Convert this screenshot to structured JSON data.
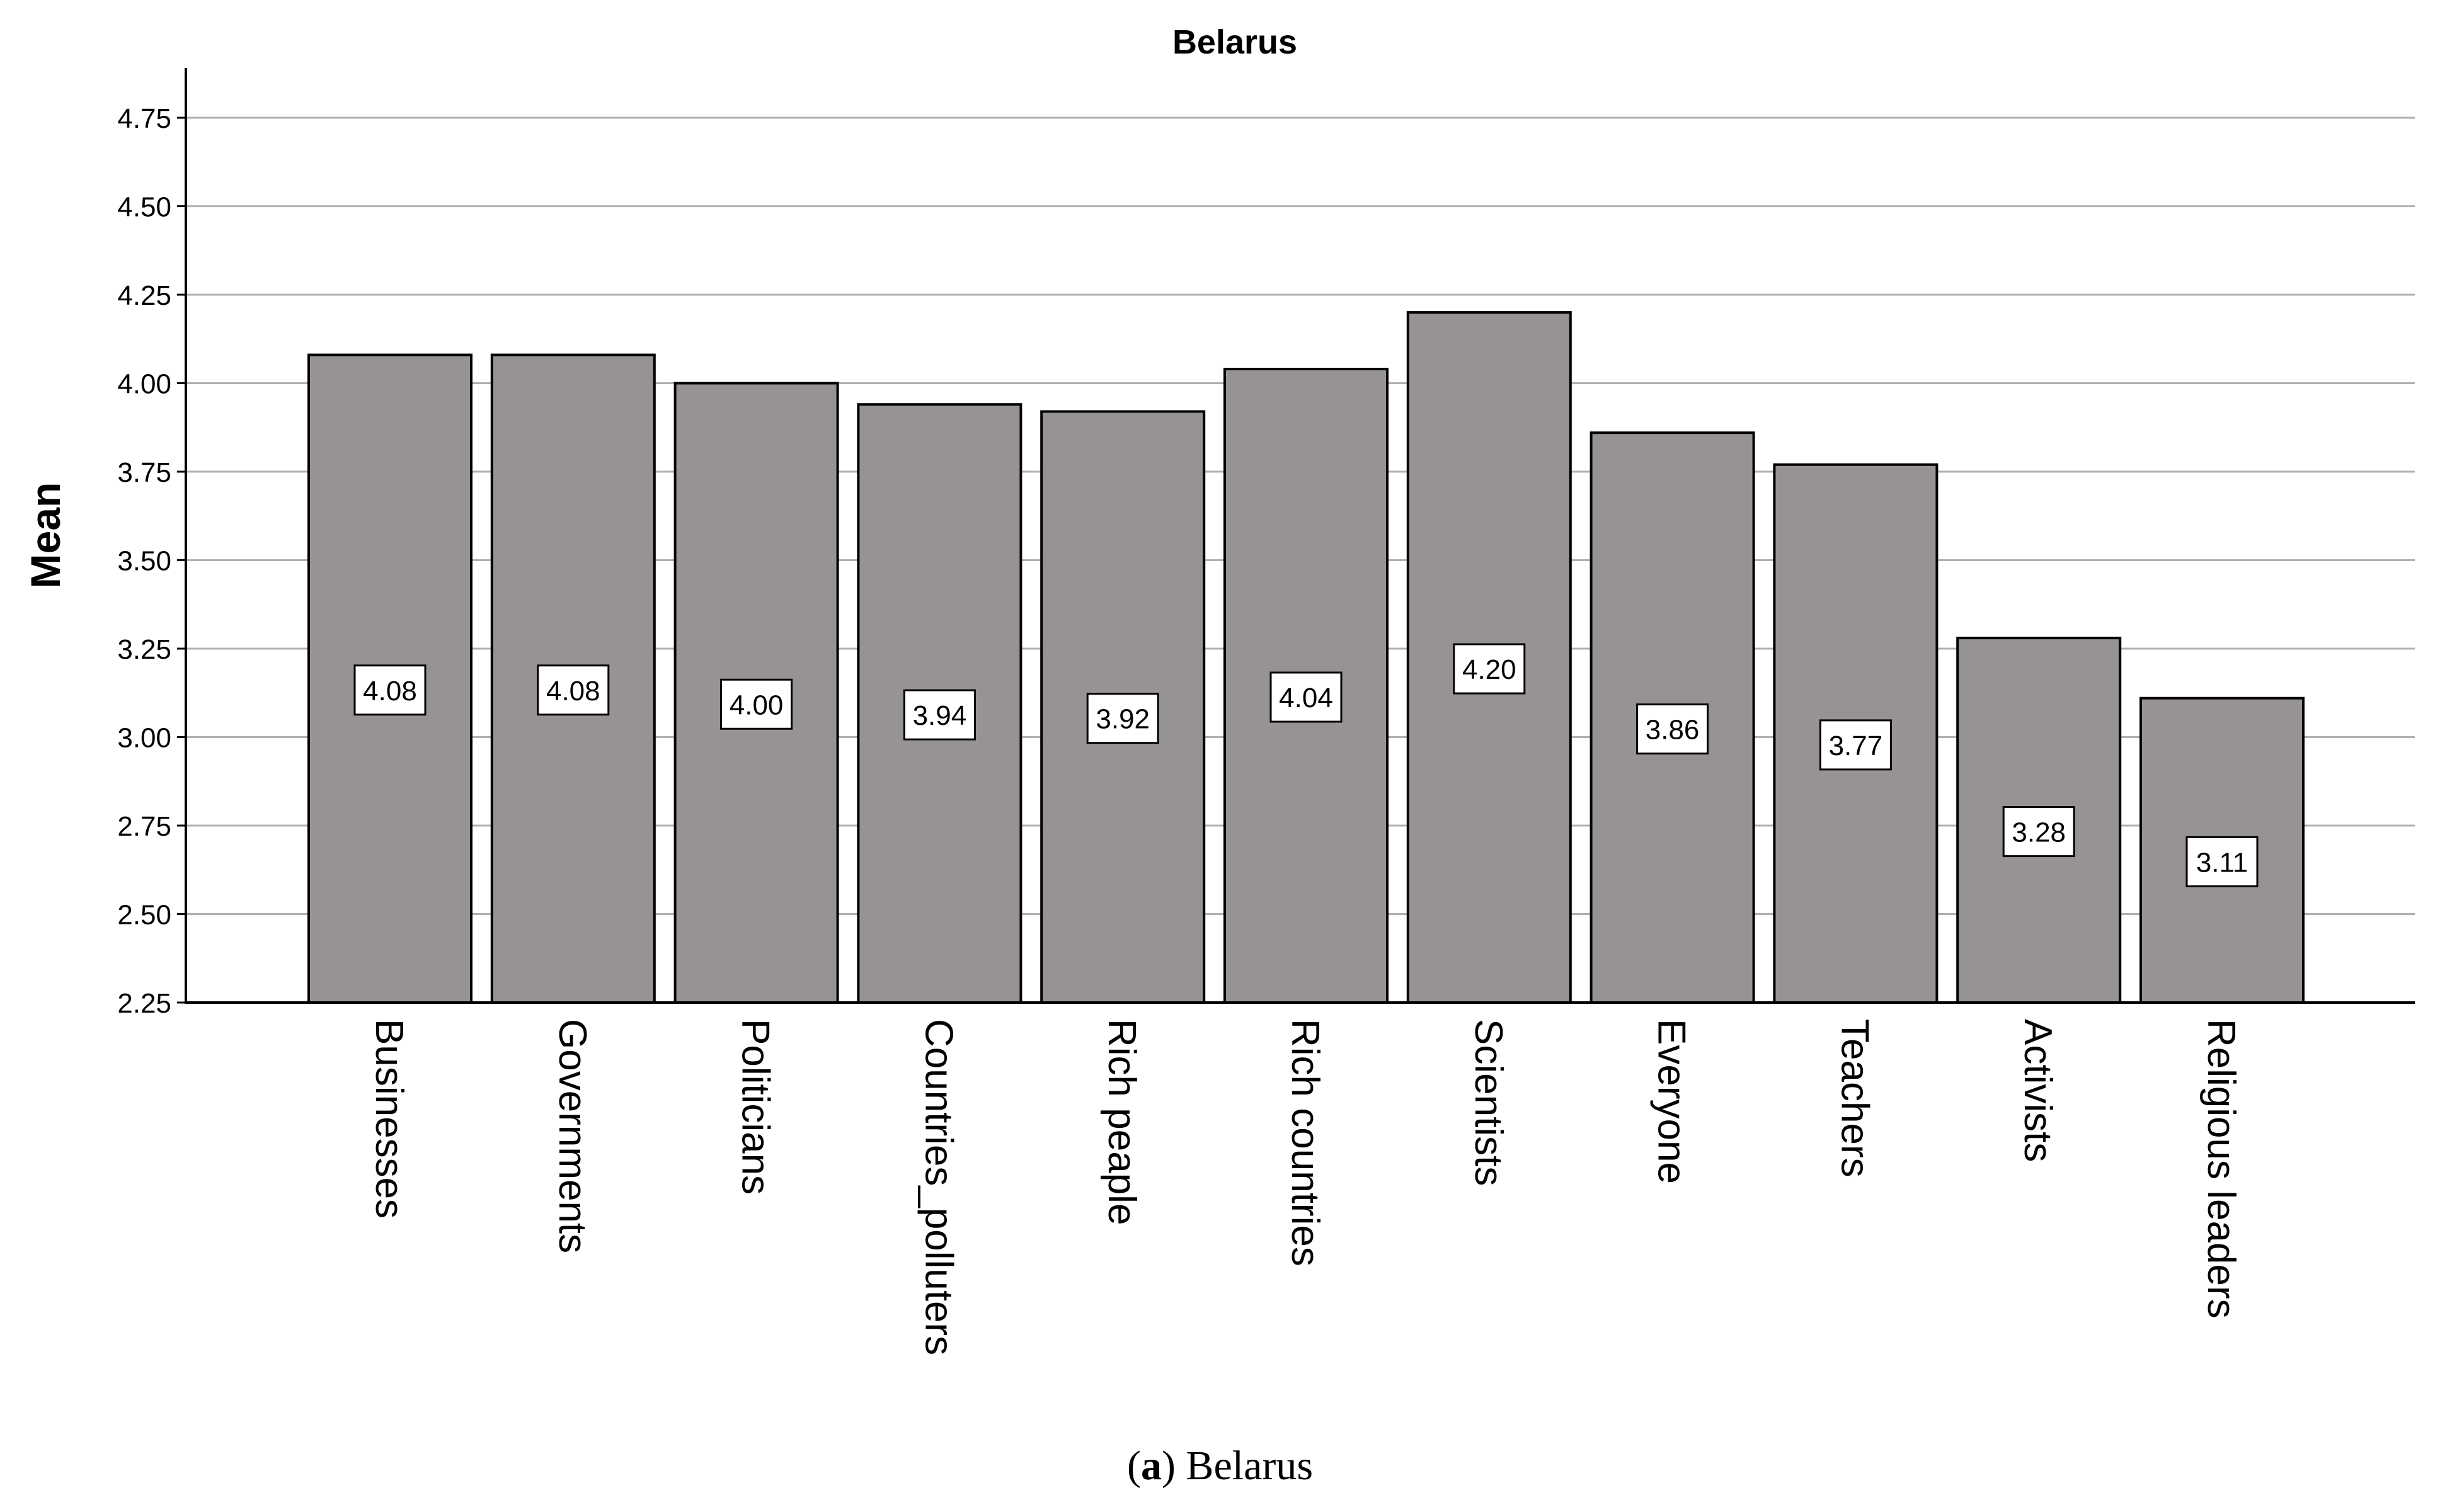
{
  "caption": {
    "label": "a",
    "text": "Belarus"
  },
  "chart_data": {
    "type": "bar",
    "title": "Belarus",
    "xlabel": "",
    "ylabel": "Mean",
    "categories": [
      "Businesses",
      "Governments",
      "Politicians",
      "Countries_polluters",
      "Rich peaple",
      "Rich countries",
      "Scientists",
      "Everyone",
      "Teachers",
      "Activists",
      "Religious leaders"
    ],
    "values": [
      4.08,
      4.08,
      4.0,
      3.94,
      3.92,
      4.04,
      4.2,
      3.86,
      3.77,
      3.28,
      3.11
    ],
    "data_labels": [
      "4.08",
      "4.08",
      "4.00",
      "3.94",
      "3.92",
      "4.04",
      "4.20",
      "3.86",
      "3.77",
      "3.28",
      "3.11"
    ],
    "ylim": [
      2.25,
      4.875
    ],
    "yticks": [
      2.25,
      2.5,
      2.75,
      3.0,
      3.25,
      3.5,
      3.75,
      4.0,
      4.25,
      4.5,
      4.75
    ],
    "ytick_labels": [
      "2.25",
      "2.50",
      "2.75",
      "3.00",
      "3.25",
      "3.50",
      "3.75",
      "4.00",
      "4.25",
      "4.50",
      "4.75"
    ],
    "grid": true,
    "bar_color": "#969392",
    "gridline_color": "#b0b0b0"
  }
}
